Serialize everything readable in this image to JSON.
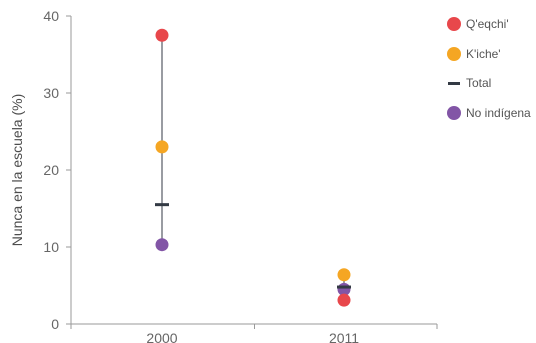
{
  "chart_data": {
    "type": "scatter",
    "categories": [
      "2000",
      "2011"
    ],
    "ylabel": "Nunca en la escuela (%)",
    "xlabel": "",
    "ylim": [
      0,
      40
    ],
    "yticks": [
      0,
      10,
      20,
      30,
      40
    ],
    "grid": false,
    "legend_position": "right",
    "series": [
      {
        "name": "Q'eqchi'",
        "marker": "dot",
        "color": "#e8474b",
        "values": [
          37.5,
          3.1
        ]
      },
      {
        "name": "K'iche'",
        "marker": "dot",
        "color": "#f5a623",
        "values": [
          23.0,
          6.4
        ]
      },
      {
        "name": "Total",
        "marker": "dash",
        "color": "#333a44",
        "values": [
          15.5,
          4.8
        ]
      },
      {
        "name": "No indígena",
        "marker": "dot",
        "color": "#8255a6",
        "values": [
          10.3,
          4.5
        ]
      }
    ]
  },
  "legend": {
    "items": [
      {
        "label": "Q'eqchi'",
        "color": "#e8474b",
        "marker": "dot"
      },
      {
        "label": "K'iche'",
        "color": "#f5a623",
        "marker": "dot"
      },
      {
        "label": "Total",
        "color": "#333a44",
        "marker": "dash"
      },
      {
        "label": "No indígena",
        "color": "#8255a6",
        "marker": "dot"
      }
    ]
  }
}
